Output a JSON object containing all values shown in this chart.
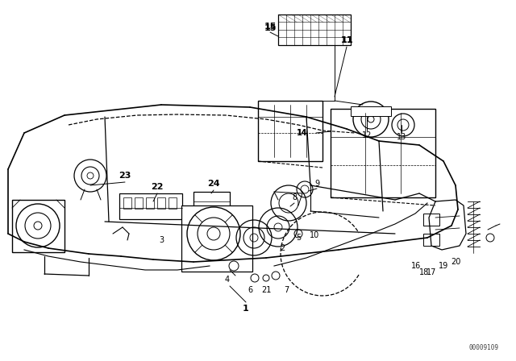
{
  "background_color": "#ffffff",
  "line_color": "#000000",
  "watermark": "00009109",
  "figsize": [
    6.4,
    4.48
  ],
  "dpi": 100
}
